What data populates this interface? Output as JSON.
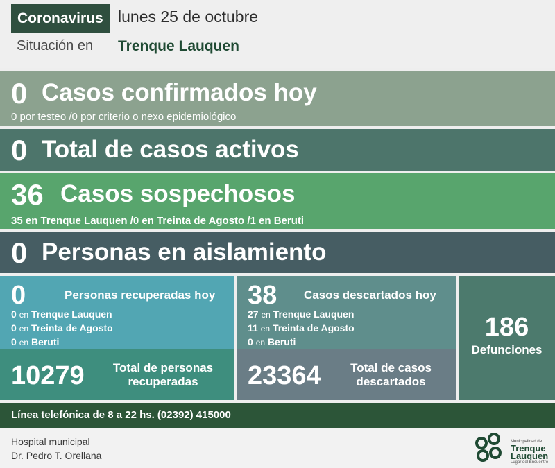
{
  "header": {
    "tag": "Coronavirus",
    "date": "lunes 25 de octubre",
    "situacion": "Situación en",
    "city": "Trenque Lauquen"
  },
  "confirmados": {
    "value": "0",
    "title": "Casos confirmados hoy",
    "detail": "0 por testeo  /0 por criterio o nexo epidemiológico"
  },
  "activos": {
    "value": "0",
    "title": "Total de casos activos"
  },
  "sospechosos": {
    "value": "36",
    "title": "Casos sospechosos",
    "detail": "35 en Trenque Lauquen  /0 en Treinta de Agosto  /1 en Beruti"
  },
  "aislamiento": {
    "value": "0",
    "title": "Personas en aislamiento"
  },
  "recuperados_hoy": {
    "value": "0",
    "title": "Personas recuperadas hoy",
    "lines": [
      {
        "n": "0",
        "en": "en",
        "place": "Trenque Lauquen"
      },
      {
        "n": "0",
        "en": "en",
        "place": "Treinta de Agosto"
      },
      {
        "n": "0",
        "en": "en",
        "place": "Beruti"
      }
    ]
  },
  "recuperados_total": {
    "value": "10279",
    "title_1": "Total de personas",
    "title_2": "recuperadas"
  },
  "descartados_hoy": {
    "value": "38",
    "title": "Casos descartados hoy",
    "lines": [
      {
        "n": "27",
        "en": "en",
        "place": "Trenque Lauquen"
      },
      {
        "n": "11",
        "en": "en",
        "place": "Treinta de Agosto"
      },
      {
        "n": "0",
        "en": "en",
        "place": "Beruti"
      }
    ]
  },
  "descartados_total": {
    "value": "23364",
    "title_1": "Total de casos",
    "title_2": "descartados"
  },
  "defunciones": {
    "value": "186",
    "title": "Defunciones"
  },
  "telefono": "Línea telefónica de 8 a 22 hs. (02392) 415000",
  "hospital": {
    "line1": "Hospital municipal",
    "line2": "Dr. Pedro T. Orellana"
  },
  "logo": {
    "small": "Municipalidad de",
    "name_1": "Trenque",
    "name_2": "Lauquen",
    "tagline": "Lugar del Encuentro",
    "color": "#1f4a33"
  }
}
